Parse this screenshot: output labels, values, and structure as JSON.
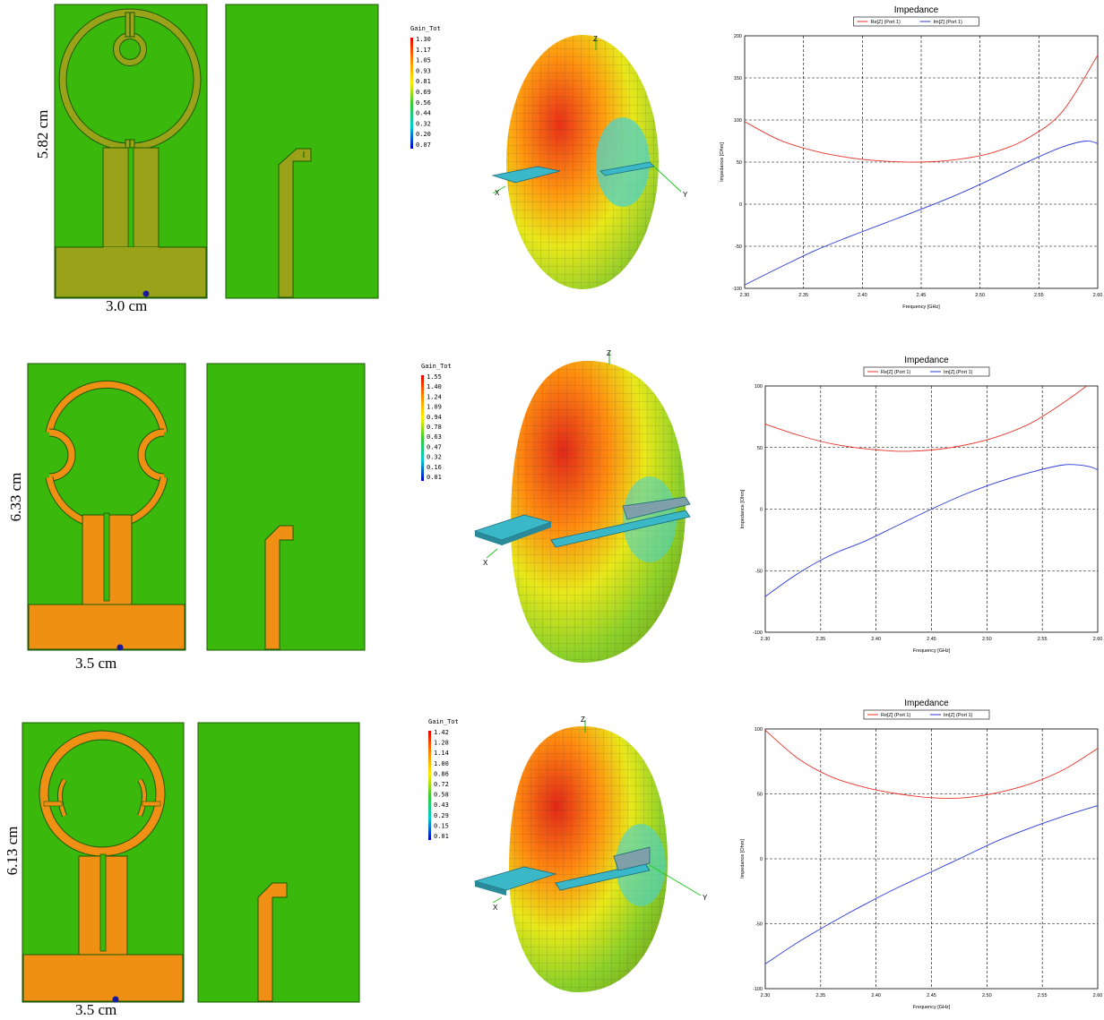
{
  "rows": [
    {
      "id": "row1",
      "dims": {
        "height": "5.82 cm",
        "width": "3.0 cm"
      },
      "gain": {
        "title": "Gain_Tot",
        "ticks": [
          "1.30",
          "1.17",
          "1.05",
          "0.93",
          "0.81",
          "0.69",
          "0.56",
          "0.44",
          "0.32",
          "0.20",
          "0.07"
        ]
      },
      "axes3d": {
        "z": "Z",
        "x": "X",
        "y": "Y"
      },
      "chart_data": {
        "type": "line",
        "title": "Impedance",
        "xlabel": "Frequency [GHz]",
        "ylabel": "Impedance [Ohm]",
        "xlim": [
          2.3,
          2.6
        ],
        "ylim": [
          -100,
          200
        ],
        "xticks": [
          "2.30",
          "2.35",
          "2.40",
          "2.45",
          "2.50",
          "2.55",
          "2.60"
        ],
        "yticks": [
          "200",
          "150",
          "100",
          "50",
          "0",
          "-50",
          "-100"
        ],
        "series": [
          {
            "name": "Re[Z] (Port 1)",
            "color": "#e8342a",
            "x": [
              2.3,
              2.33,
              2.36,
              2.39,
              2.42,
              2.45,
              2.48,
              2.51,
              2.54,
              2.57,
              2.6
            ],
            "y": [
              98,
              76,
              63,
              55,
              51,
              50,
              53,
              61,
              78,
              110,
              177
            ]
          },
          {
            "name": "Im[Z] (Port 1)",
            "color": "#2b3bd6",
            "x": [
              2.3,
              2.33,
              2.36,
              2.39,
              2.42,
              2.45,
              2.48,
              2.51,
              2.54,
              2.57,
              2.59,
              2.6
            ],
            "y": [
              -96,
              -75,
              -55,
              -38,
              -22,
              -6,
              11,
              30,
              50,
              68,
              75,
              72
            ]
          }
        ]
      }
    },
    {
      "id": "row2",
      "dims": {
        "height": "6.33 cm",
        "width": "3.5 cm"
      },
      "gain": {
        "title": "Gain_Tot",
        "ticks": [
          "1.55",
          "1.40",
          "1.24",
          "1.09",
          "0.94",
          "0.78",
          "0.63",
          "0.47",
          "0.32",
          "0.16",
          "0.01"
        ]
      },
      "axes3d": {
        "z": "Z",
        "x": "X",
        "y": ""
      },
      "chart_data": {
        "type": "line",
        "title": "Impedance",
        "xlabel": "Frequency [GHz]",
        "ylabel": "Impedance [Ohm]",
        "xlim": [
          2.3,
          2.6
        ],
        "ylim": [
          -100,
          100
        ],
        "xticks": [
          "2.30",
          "2.35",
          "2.40",
          "2.45",
          "2.50",
          "2.55",
          "2.60"
        ],
        "yticks": [
          "100",
          "50",
          "0",
          "-50",
          "-100"
        ],
        "series": [
          {
            "name": "Re[Z] (Port 1)",
            "color": "#e8342a",
            "x": [
              2.3,
              2.33,
              2.36,
              2.39,
              2.42,
              2.45,
              2.48,
              2.51,
              2.54,
              2.57,
              2.59
            ],
            "y": [
              69,
              60,
              53,
              49,
              47,
              48,
              52,
              59,
              70,
              87,
              100
            ]
          },
          {
            "name": "Im[Z] (Port 1)",
            "color": "#2b3bd6",
            "x": [
              2.3,
              2.33,
              2.36,
              2.39,
              2.42,
              2.45,
              2.48,
              2.51,
              2.54,
              2.57,
              2.59,
              2.6
            ],
            "y": [
              -71,
              -52,
              -37,
              -26,
              -13,
              0,
              12,
              22,
              30,
              36,
              35,
              32
            ]
          }
        ]
      }
    },
    {
      "id": "row3",
      "dims": {
        "height": "6.13 cm",
        "width": "3.5 cm"
      },
      "gain": {
        "title": "Gain_Tot",
        "ticks": [
          "1.42",
          "1.28",
          "1.14",
          "1.00",
          "0.86",
          "0.72",
          "0.58",
          "0.43",
          "0.29",
          "0.15",
          "0.01"
        ]
      },
      "axes3d": {
        "z": "Z",
        "x": "X",
        "y": "Y"
      },
      "chart_data": {
        "type": "line",
        "title": "Impedance",
        "xlabel": "Frequency [GHz]",
        "ylabel": "Impedance [Ohm]",
        "xlim": [
          2.3,
          2.6
        ],
        "ylim": [
          -100,
          100
        ],
        "xticks": [
          "2.30",
          "2.35",
          "2.40",
          "2.45",
          "2.50",
          "2.55",
          "2.60"
        ],
        "yticks": [
          "100",
          "50",
          "0",
          "-50",
          "-100"
        ],
        "series": [
          {
            "name": "Re[Z] (Port 1)",
            "color": "#e8342a",
            "x": [
              2.3,
              2.33,
              2.36,
              2.39,
              2.42,
              2.45,
              2.48,
              2.51,
              2.54,
              2.57,
              2.6
            ],
            "y": [
              99,
              77,
              63,
              55,
              50,
              47,
              47,
              51,
              58,
              69,
              85
            ]
          },
          {
            "name": "Im[Z] (Port 1)",
            "color": "#2b3bd6",
            "x": [
              2.3,
              2.33,
              2.36,
              2.39,
              2.42,
              2.45,
              2.48,
              2.51,
              2.54,
              2.57,
              2.6
            ],
            "y": [
              -81,
              -64,
              -49,
              -35,
              -22,
              -10,
              2,
              14,
              24,
              33,
              41
            ]
          }
        ]
      }
    }
  ],
  "colors": {
    "substrate": "#3ab80b",
    "copper_row1": "#9aa21a",
    "copper_orange": "#ef8f14",
    "port_dot": "#1a1a9a"
  }
}
